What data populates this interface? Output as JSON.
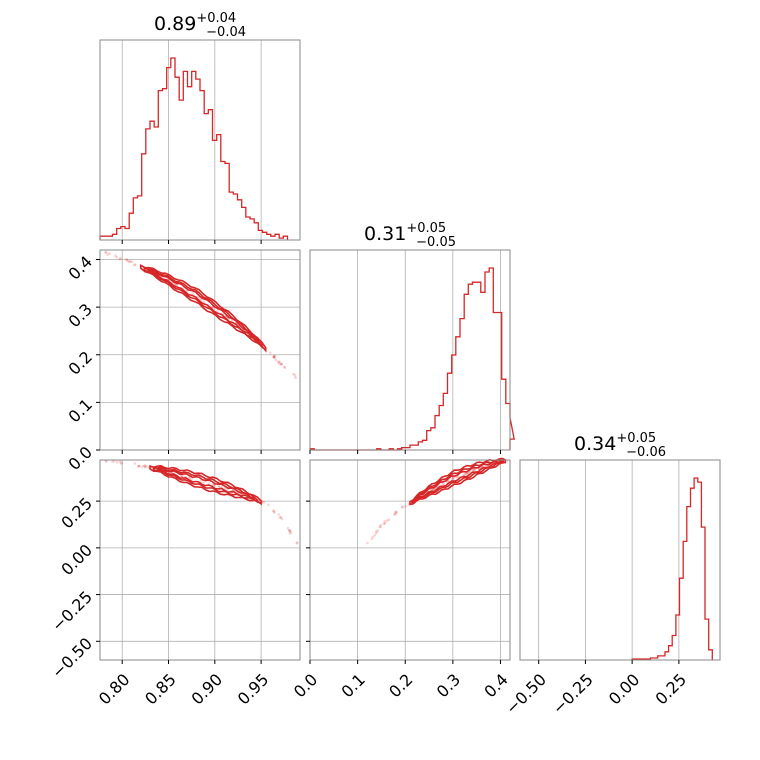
{
  "chart_data": {
    "type": "corner",
    "color": "#d62728",
    "params": [
      {
        "id": "p0",
        "median": "0.89",
        "plus": "+0.04",
        "minus": "−0.04",
        "range": [
          0.776,
          0.992
        ],
        "ticks": [
          {
            "v": 0.8,
            "label": "0.80"
          },
          {
            "v": 0.85,
            "label": "0.85"
          },
          {
            "v": 0.9,
            "label": "0.90"
          },
          {
            "v": 0.95,
            "label": "0.95"
          }
        ],
        "hist": {
          "start": 0.776,
          "width": 0.0045,
          "values": [
            2,
            2,
            2,
            3,
            6,
            7,
            6,
            14,
            22,
            23,
            45,
            58,
            62,
            59,
            78,
            79,
            90,
            95,
            85,
            73,
            88,
            80,
            88,
            84,
            78,
            66,
            68,
            52,
            55,
            41,
            40,
            25,
            24,
            21,
            17,
            12,
            11,
            9,
            5,
            4,
            3,
            2,
            3,
            1,
            2
          ]
        }
      },
      {
        "id": "p1",
        "median": "0.31",
        "plus": "+0.05",
        "minus": "−0.05",
        "range": [
          0.0,
          0.42
        ],
        "ticks": [
          {
            "v": 0.0,
            "label": "0.0"
          },
          {
            "v": 0.1,
            "label": "0.1"
          },
          {
            "v": 0.2,
            "label": "0.2"
          },
          {
            "v": 0.3,
            "label": "0.3"
          },
          {
            "v": 0.4,
            "label": "0.4"
          }
        ],
        "hist": {
          "start": 0.0,
          "width": 0.00875,
          "values": [
            0.6,
            0,
            0,
            0,
            0,
            0,
            0,
            0,
            0,
            0,
            0,
            0,
            0,
            0,
            0,
            0,
            0.6,
            0,
            0,
            0.6,
            0,
            0.6,
            1.2,
            1.2,
            2.4,
            2.4,
            4,
            4.8,
            9.6,
            11,
            17,
            22,
            28,
            38,
            47,
            56,
            65,
            77,
            82,
            83,
            83,
            78,
            88,
            90,
            68,
            68,
            35,
            23,
            16,
            5.4
          ]
        }
      },
      {
        "id": "p2",
        "median": "0.34",
        "plus": "+0.05",
        "minus": "−0.06",
        "range": [
          -0.6,
          0.47
        ],
        "ticks": [
          {
            "v": -0.5,
            "label": "−0.50"
          },
          {
            "v": -0.25,
            "label": "−0.25"
          },
          {
            "v": 0.0,
            "label": "0.00"
          },
          {
            "v": 0.25,
            "label": "0.25"
          }
        ],
        "hist": {
          "start": 0.0,
          "width": 0.0195,
          "values": [
            0.5,
            0.5,
            0.5,
            0.5,
            0.5,
            1,
            1,
            2,
            2,
            4,
            7,
            12,
            22,
            40,
            58,
            75,
            84,
            89,
            87,
            65,
            20,
            5
          ]
        }
      }
    ],
    "pairs": [
      {
        "x": "p0",
        "y": "p1",
        "ridge_x": [
          0.782,
          0.8,
          0.82,
          0.84,
          0.86,
          0.88,
          0.9,
          0.92,
          0.94,
          0.955,
          0.97,
          0.988
        ],
        "ridge_y": [
          0.413,
          0.402,
          0.385,
          0.367,
          0.346,
          0.324,
          0.297,
          0.27,
          0.24,
          0.213,
          0.183,
          0.152
        ],
        "core": [
          0.82,
          0.955
        ]
      },
      {
        "x": "p0",
        "y": "p2",
        "ridge_x": [
          0.782,
          0.8,
          0.82,
          0.84,
          0.86,
          0.88,
          0.9,
          0.92,
          0.94,
          0.955,
          0.97,
          0.99
        ],
        "ridge_y": [
          0.47,
          0.458,
          0.44,
          0.42,
          0.392,
          0.365,
          0.335,
          0.305,
          0.27,
          0.235,
          0.17,
          0.02
        ],
        "core": [
          0.83,
          0.95
        ]
      },
      {
        "x": "p1",
        "y": "p2",
        "ridge_x": [
          0.12,
          0.15,
          0.18,
          0.21,
          0.24,
          0.27,
          0.3,
          0.33,
          0.36,
          0.39,
          0.415
        ],
        "ridge_y": [
          0.02,
          0.12,
          0.19,
          0.24,
          0.29,
          0.33,
          0.37,
          0.4,
          0.43,
          0.455,
          0.47
        ],
        "core": [
          0.21,
          0.41
        ]
      }
    ]
  }
}
